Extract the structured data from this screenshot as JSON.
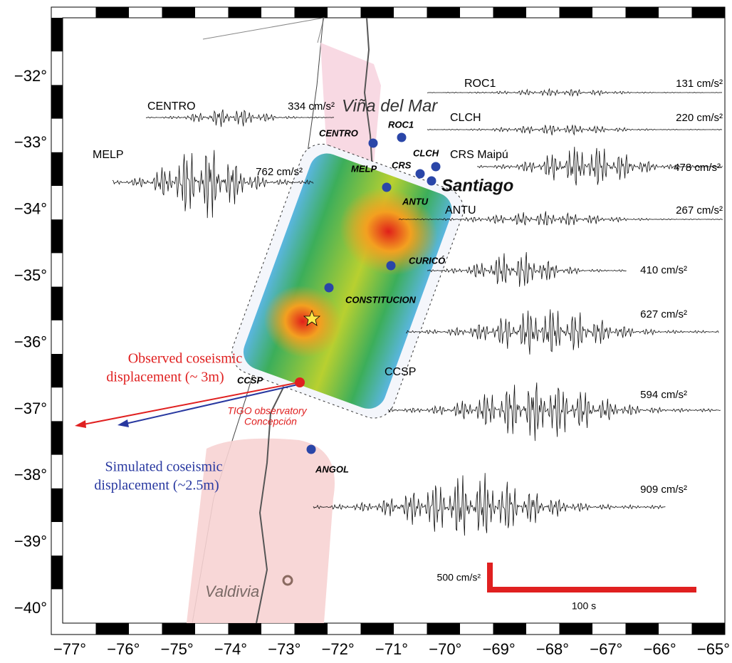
{
  "latitude_labels": [
    "−32°",
    "−33°",
    "−34°",
    "−35°",
    "−36°",
    "−37°",
    "−38°",
    "−39°",
    "−40°"
  ],
  "longitude_labels": [
    "−77°",
    "−76°",
    "−75°",
    "−74°",
    "−73°",
    "−72°",
    "−71°",
    "−70°",
    "−69°",
    "−68°",
    "−67°",
    "−66°",
    "−65°"
  ],
  "cities": {
    "vina_del_mar": "Viña del Mar",
    "santiago": "Santiago",
    "valdivia": "Valdivia"
  },
  "stations": [
    "CENTRO",
    "ROC1",
    "CLCH",
    "MELP",
    "CRS",
    "ANTU",
    "CURICÓ",
    "CONSTITUCION",
    "CCSP",
    "ANGOL"
  ],
  "records": [
    {
      "name": "CENTRO",
      "pga": "334 cm/s²"
    },
    {
      "name": "ROC1",
      "pga": "131 cm/s²"
    },
    {
      "name": "CLCH",
      "pga": "220 cm/s²"
    },
    {
      "name": "CRS Maipú",
      "pga": "478 cm/s²"
    },
    {
      "name": "MELP",
      "pga": "762 cm/s²"
    },
    {
      "name": "ANTU",
      "pga": "267 cm/s²"
    },
    {
      "pga": "410 cm/s²"
    },
    {
      "pga": "627 cm/s²"
    },
    {
      "name": "CCSP",
      "pga": "594 cm/s²"
    },
    {
      "pga": "909 cm/s²"
    }
  ],
  "annotations": {
    "observed": [
      "Observed coseismic",
      "displacement (~ 3m)"
    ],
    "simulated": [
      "Simulated coseismic",
      "displacement (~2.5m)"
    ],
    "observatory": [
      "TIGO observatory",
      "Concepción"
    ]
  },
  "scale_bar": {
    "amplitude": "500 cm/s²",
    "time": "100 s"
  }
}
